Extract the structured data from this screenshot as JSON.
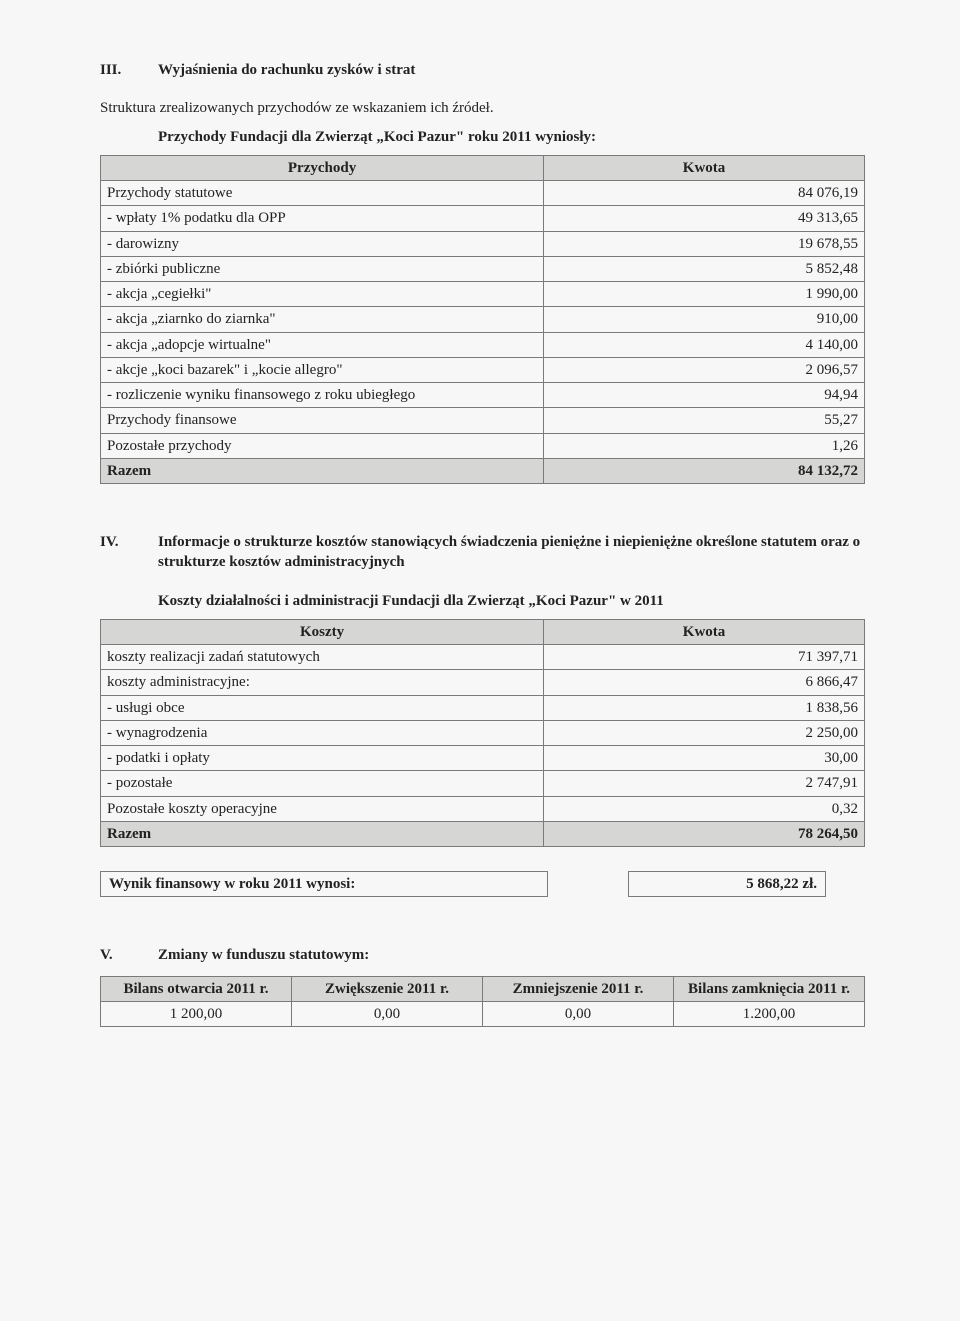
{
  "sectionIII": {
    "num": "III.",
    "title": "Wyjaśnienia do rachunku zysków i strat",
    "sub1": "Struktura zrealizowanych przychodów ze wskazaniem ich źródeł.",
    "sub2": "Przychody Fundacji dla Zwierząt „Koci Pazur\" roku 2011 wyniosły:"
  },
  "table1": {
    "headers": [
      "Przychody",
      "Kwota"
    ],
    "rows": [
      [
        "Przychody statutowe",
        "84 076,19"
      ],
      [
        "- wpłaty 1% podatku dla OPP",
        "49 313,65"
      ],
      [
        "- darowizny",
        "19 678,55"
      ],
      [
        "- zbiórki publiczne",
        "5 852,48"
      ],
      [
        "- akcja „cegiełki\"",
        "1 990,00"
      ],
      [
        "- akcja „ziarnko do ziarnka\"",
        "910,00"
      ],
      [
        "- akcja „adopcje wirtualne\"",
        "4 140,00"
      ],
      [
        "- akcje „koci bazarek\" i „kocie allegro\"",
        "2 096,57"
      ],
      [
        "- rozliczenie wyniku finansowego z roku ubiegłego",
        "94,94"
      ],
      [
        "Przychody finansowe",
        "55,27"
      ],
      [
        "Pozostałe przychody",
        "1,26"
      ]
    ],
    "razem": [
      "Razem",
      "84 132,72"
    ]
  },
  "sectionIV": {
    "num": "IV.",
    "title": "Informacje o strukturze kosztów stanowiących świadczenia pieniężne i niepieniężne określone statutem oraz o strukturze kosztów administracyjnych",
    "sub": "Koszty działalności i administracji Fundacji dla Zwierząt „Koci Pazur\" w 2011"
  },
  "table2": {
    "headers": [
      "Koszty",
      "Kwota"
    ],
    "rows": [
      [
        "koszty realizacji zadań statutowych",
        "71 397,71"
      ],
      [
        "koszty administracyjne:",
        "6 866,47"
      ],
      [
        "- usługi obce",
        "1 838,56"
      ],
      [
        "- wynagrodzenia",
        "2 250,00"
      ],
      [
        "- podatki i opłaty",
        "30,00"
      ],
      [
        "- pozostałe",
        "2 747,91"
      ],
      [
        "Pozostałe koszty operacyjne",
        "0,32"
      ]
    ],
    "razem": [
      "Razem",
      "78 264,50"
    ]
  },
  "wynik": {
    "label": "Wynik finansowy w roku 2011 wynosi:",
    "value": "5 868,22 zł."
  },
  "sectionV": {
    "num": "V.",
    "title": "Zmiany w funduszu statutowym:"
  },
  "table3": {
    "headers": [
      "Bilans otwarcia 2011 r.",
      "Zwiększenie 2011 r.",
      "Zmniejszenie 2011 r.",
      "Bilans zamknięcia 2011 r."
    ],
    "row": [
      "1 200,00",
      "0,00",
      "0,00",
      "1.200,00"
    ]
  }
}
